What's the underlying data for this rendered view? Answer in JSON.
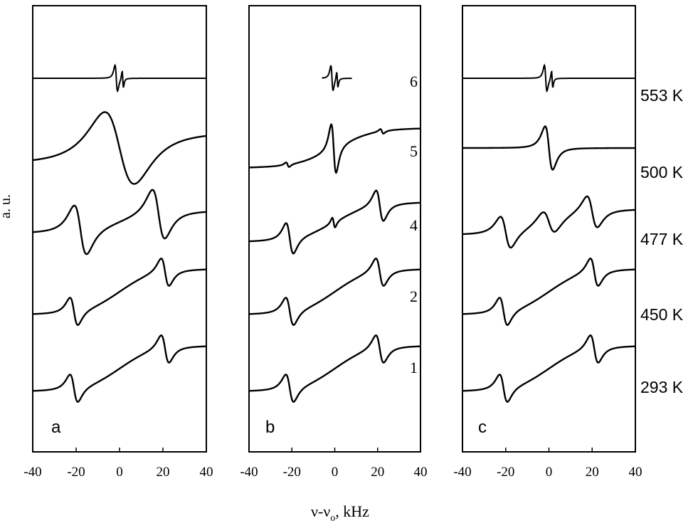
{
  "chart_data": {
    "type": "line",
    "description_free": true,
    "ylabel": "a. u.",
    "xlabel_main": "ν-ν",
    "xlabel_sub": "o",
    "xlabel_unit": ", kHz",
    "xlim": [
      -40,
      40
    ],
    "xticks": [
      "-40",
      "-20",
      "0",
      "20",
      "40"
    ],
    "panels": [
      {
        "id": "a",
        "letter": "a",
        "traces": [
          {
            "label": "",
            "kind": "narrow",
            "center": 0
          },
          {
            "label": "",
            "kind": "broad",
            "center": 0
          },
          {
            "label": "",
            "kind": "exchange",
            "center": 0
          },
          {
            "label": "",
            "kind": "doublet",
            "center": 0
          },
          {
            "label": "",
            "kind": "doublet",
            "center": 0
          }
        ]
      },
      {
        "id": "b",
        "letter": "b",
        "traces": [
          {
            "label": "6",
            "kind": "narrow-short",
            "center": 0
          },
          {
            "label": "5",
            "kind": "noisy-central",
            "center": 0
          },
          {
            "label": "4",
            "kind": "doublet-central",
            "center": 0
          },
          {
            "label": "2",
            "kind": "doublet",
            "center": 0
          },
          {
            "label": "1",
            "kind": "doublet",
            "center": 0
          }
        ]
      },
      {
        "id": "c",
        "letter": "c",
        "traces": [
          {
            "label": "553 K",
            "kind": "narrow",
            "center": 0
          },
          {
            "label": "500 K",
            "kind": "central",
            "center": 0
          },
          {
            "label": "477 K",
            "kind": "three-line",
            "center": 0
          },
          {
            "label": "450 K",
            "kind": "doublet",
            "center": 0
          },
          {
            "label": "293 K",
            "kind": "doublet",
            "center": 0
          }
        ]
      }
    ]
  }
}
